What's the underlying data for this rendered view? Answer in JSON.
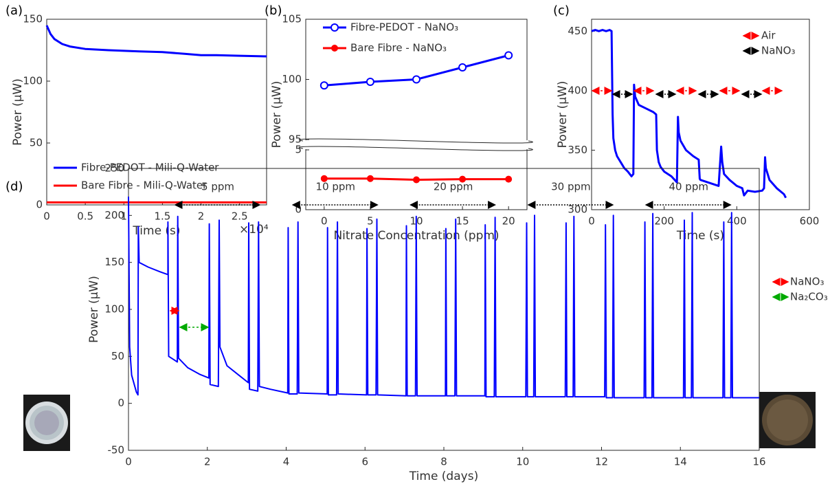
{
  "chart_data": [
    {
      "type": "line",
      "panel": "(a)",
      "xlabel": "Time (s)",
      "ylabel": "Power (µW)",
      "x_scale_label": "×10⁴",
      "xlim": [
        0,
        2.85
      ],
      "xticks": [
        0,
        0.5,
        1,
        1.5,
        2,
        2.5
      ],
      "ylim": [
        0,
        150
      ],
      "yticks": [
        0,
        50,
        100,
        150
      ],
      "legend": "lower left",
      "series": [
        {
          "name": "Fibre-PEDOT - Mili-Q-Water",
          "color": "#0000ff",
          "x": [
            0,
            0.05,
            0.1,
            0.2,
            0.3,
            0.5,
            0.8,
            1.0,
            1.2,
            1.5,
            1.8,
            2.0,
            2.2,
            2.5,
            2.85
          ],
          "values": [
            145,
            138,
            134,
            130,
            128,
            126,
            125,
            124.5,
            124,
            123.5,
            122,
            121,
            121,
            120.5,
            120
          ]
        },
        {
          "name": "Bare Fibre - Mili-Q-Water",
          "color": "#ff0000",
          "x": [
            0,
            2.85
          ],
          "values": [
            2,
            2
          ]
        }
      ]
    },
    {
      "type": "line",
      "panel": "(b)",
      "xlabel": "Nitrate Concentration (ppm)",
      "ylabel": "Power (µW)",
      "xlim": [
        -2,
        22
      ],
      "xticks": [
        0,
        5,
        10,
        15,
        20
      ],
      "ylim": [
        0,
        105
      ],
      "y_break": [
        5,
        95
      ],
      "yticks": [
        0,
        5,
        95,
        100,
        105
      ],
      "legend": "upper left",
      "x": [
        0,
        5,
        10,
        15,
        20
      ],
      "series": [
        {
          "name": "Fibre-PEDOT - NaNO₃",
          "color": "#0000ff",
          "marker": "open",
          "values": [
            99.5,
            99.8,
            100,
            101,
            102
          ]
        },
        {
          "name": "Bare Fibre - NaNO₃",
          "color": "#ff0000",
          "marker": "filled",
          "values": [
            2.6,
            2.6,
            2.5,
            2.55,
            2.55
          ]
        }
      ]
    },
    {
      "type": "line",
      "panel": "(c)",
      "xlabel": "Time (s)",
      "ylabel": "Power (µW)",
      "xlim": [
        0,
        600
      ],
      "xticks": [
        0,
        200,
        400,
        600
      ],
      "ylim": [
        300,
        460
      ],
      "yticks": [
        300,
        350,
        400,
        450
      ],
      "annotations": [
        {
          "text": "Air",
          "color": "#ff0000"
        },
        {
          "text": "NaNO₃",
          "color": "#000000"
        }
      ],
      "x": [
        0,
        10,
        20,
        30,
        40,
        50,
        55,
        58,
        60,
        65,
        70,
        80,
        90,
        100,
        110,
        115,
        117,
        120,
        130,
        150,
        170,
        178,
        180,
        185,
        190,
        200,
        220,
        235,
        238,
        240,
        245,
        260,
        280,
        295,
        298,
        300,
        320,
        350,
        357,
        360,
        365,
        380,
        400,
        415,
        420,
        430,
        450,
        470,
        475,
        478,
        480,
        490,
        510,
        530,
        535
      ],
      "series": [
        {
          "color": "#0000ff",
          "values": [
            450,
            451,
            450,
            451,
            450,
            451,
            450,
            380,
            360,
            350,
            345,
            340,
            335,
            332,
            328,
            330,
            405,
            395,
            388,
            385,
            382,
            380,
            350,
            340,
            336,
            332,
            328,
            323,
            378,
            365,
            358,
            350,
            345,
            342,
            326,
            325,
            323,
            320,
            353,
            340,
            330,
            325,
            320,
            318,
            312,
            316,
            315,
            316,
            318,
            344,
            335,
            325,
            318,
            313,
            310
          ]
        }
      ]
    },
    {
      "type": "line",
      "panel": "(d)",
      "xlabel": "Time (days)",
      "ylabel": "Power (µW)",
      "xlim": [
        0,
        16
      ],
      "xticks": [
        0,
        2,
        4,
        6,
        8,
        10,
        12,
        14,
        16
      ],
      "ylim": [
        -50,
        250
      ],
      "yticks": [
        -50,
        0,
        50,
        100,
        150,
        200,
        250
      ],
      "ppm_labels": [
        "5 ppm",
        "10 ppm",
        "20 ppm",
        "30 ppm",
        "40 ppm"
      ],
      "annotations": [
        {
          "text": "NaNO₃",
          "color": "#ff0000"
        },
        {
          "text": "Na₂CO₃",
          "color": "#00aa00"
        }
      ],
      "x": [
        0,
        0.03,
        0.08,
        0.2,
        0.24,
        0.25,
        0.27,
        0.5,
        0.8,
        1.0,
        1.0,
        1.02,
        1.24,
        1.25,
        1.27,
        1.5,
        1.8,
        2.04,
        2.05,
        2.07,
        2.28,
        2.3,
        2.32,
        2.5,
        2.8,
        3.04,
        3.05,
        3.07,
        3.28,
        3.3,
        3.32,
        3.6,
        4.04,
        4.05,
        4.07,
        4.28,
        4.3,
        4.32,
        5.04,
        5.05,
        5.07,
        5.28,
        5.3,
        5.32,
        6.04,
        6.05,
        6.07,
        6.28,
        6.3,
        6.32,
        7.04,
        7.05,
        7.07,
        7.28,
        7.3,
        7.32,
        8.04,
        8.05,
        8.07,
        8.28,
        8.3,
        8.32,
        9.04,
        9.05,
        9.07,
        9.28,
        9.3,
        9.32,
        10.08,
        10.1,
        10.12,
        10.28,
        10.3,
        10.32,
        11.08,
        11.1,
        11.12,
        11.28,
        11.3,
        11.32,
        12.08,
        12.1,
        12.12,
        12.28,
        12.3,
        12.32,
        13.08,
        13.1,
        13.12,
        13.28,
        13.3,
        13.32,
        14.08,
        14.1,
        14.12,
        14.28,
        14.3,
        14.32,
        15.08,
        15.1,
        15.12,
        15.28,
        15.3,
        15.32,
        16
      ],
      "series": [
        {
          "color": "#0000ff",
          "values": [
            220,
            60,
            30,
            12,
            9,
            188,
            150,
            145,
            140,
            137,
            193,
            50,
            44,
            199,
            48,
            38,
            31,
            27,
            191,
            20,
            18,
            195,
            60,
            40,
            30,
            22,
            192,
            15,
            13,
            193,
            18,
            15,
            11,
            187,
            10,
            10,
            193,
            11,
            10,
            187,
            9,
            9,
            193,
            10,
            9,
            186,
            9,
            9,
            196,
            9,
            8,
            189,
            8,
            8,
            199,
            8,
            8,
            186,
            8,
            8,
            196,
            8,
            8,
            190,
            7,
            7,
            198,
            7,
            7,
            192,
            7,
            7,
            200,
            7,
            7,
            192,
            7,
            7,
            199,
            7,
            7,
            190,
            6,
            6,
            200,
            6,
            6,
            193,
            6,
            6,
            202,
            6,
            6,
            195,
            6,
            6,
            203,
            6,
            6,
            193,
            6,
            6,
            203,
            6,
            6
          ]
        }
      ]
    }
  ]
}
